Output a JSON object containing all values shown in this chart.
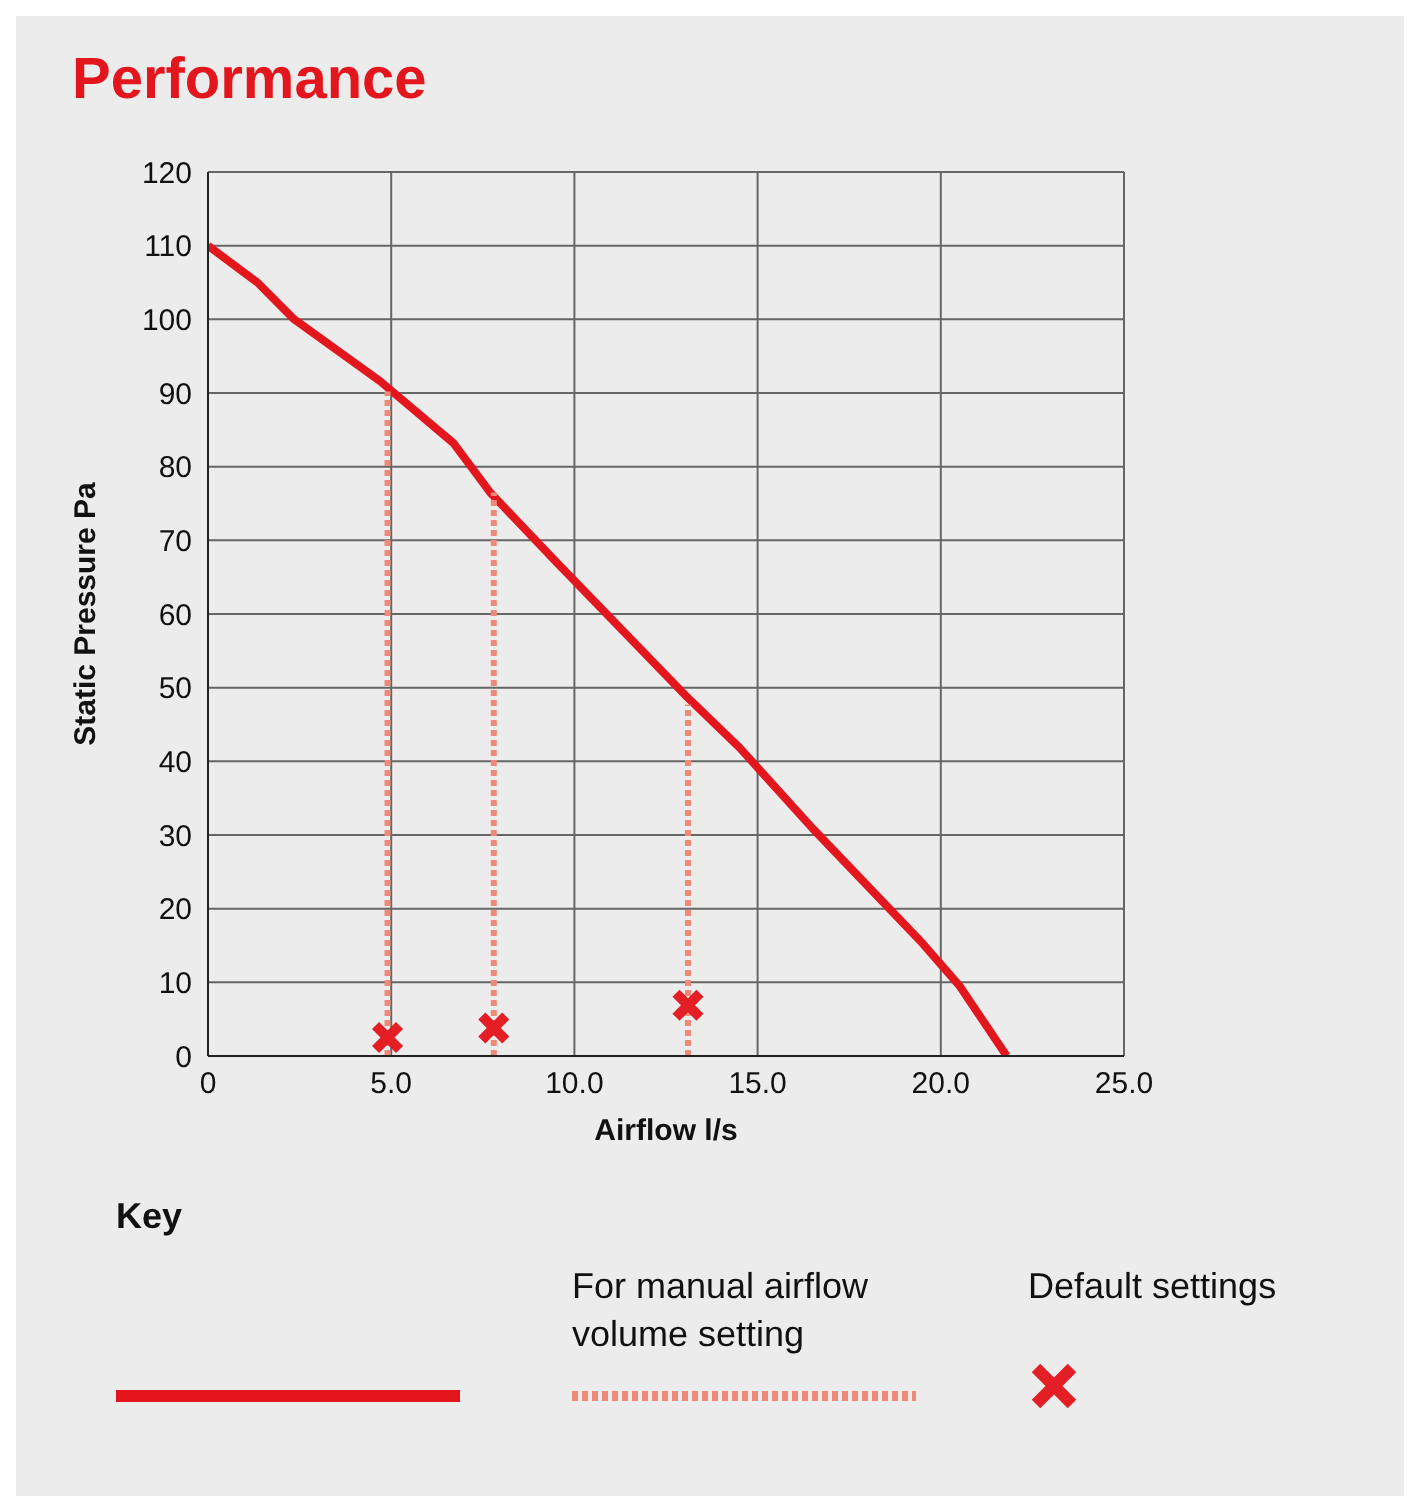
{
  "chart_data": {
    "type": "line",
    "title": "Performance",
    "xlabel": "Airflow l/s",
    "ylabel": "Static Pressure Pa",
    "legend_title": "Key",
    "xlim": [
      0,
      25
    ],
    "ylim": [
      0,
      120
    ],
    "xticks": [
      0,
      {
        "value": 5,
        "label": "5.0"
      },
      {
        "value": 10,
        "label": "10.0"
      },
      {
        "value": 15,
        "label": "15.0"
      },
      {
        "value": 20,
        "label": "20.0"
      },
      {
        "value": 25,
        "label": "25.0"
      }
    ],
    "yticks": [
      0,
      10,
      20,
      30,
      40,
      50,
      60,
      70,
      80,
      90,
      100,
      110,
      120
    ],
    "grid": true,
    "legend": "bottom",
    "series": [
      {
        "color": "#e3161e",
        "line_style": "solid",
        "x": [
          0,
          1.35,
          2.35,
          4.7,
          6.7,
          7.7,
          9.4,
          13.1,
          14.5,
          16.5,
          19.5,
          20.5,
          21.8
        ],
        "values": [
          110,
          105,
          100,
          91.6,
          83.2,
          76.5,
          67.6,
          48.6,
          41.9,
          30.9,
          15.3,
          9.6,
          0
        ]
      },
      {
        "name": "For manual airflow volume setting",
        "color": "#f08a78",
        "line_style": "dotted",
        "x": [
          4.9,
          4.9
        ],
        "values": [
          0,
          90.2
        ]
      },
      {
        "color": "#f08a78",
        "line_style": "dotted",
        "x": [
          7.8,
          7.8
        ],
        "values": [
          0,
          76.5
        ]
      },
      {
        "color": "#f08a78",
        "line_style": "dotted",
        "x": [
          13.1,
          13.1
        ],
        "values": [
          0,
          47.7
        ]
      },
      {
        "type": "scatter",
        "name": "Default settings",
        "color": "#e31e24",
        "marker": "cross",
        "x": [
          4.9,
          7.8,
          13.1
        ],
        "values": [
          2.5,
          3.8,
          6.9
        ]
      }
    ]
  }
}
